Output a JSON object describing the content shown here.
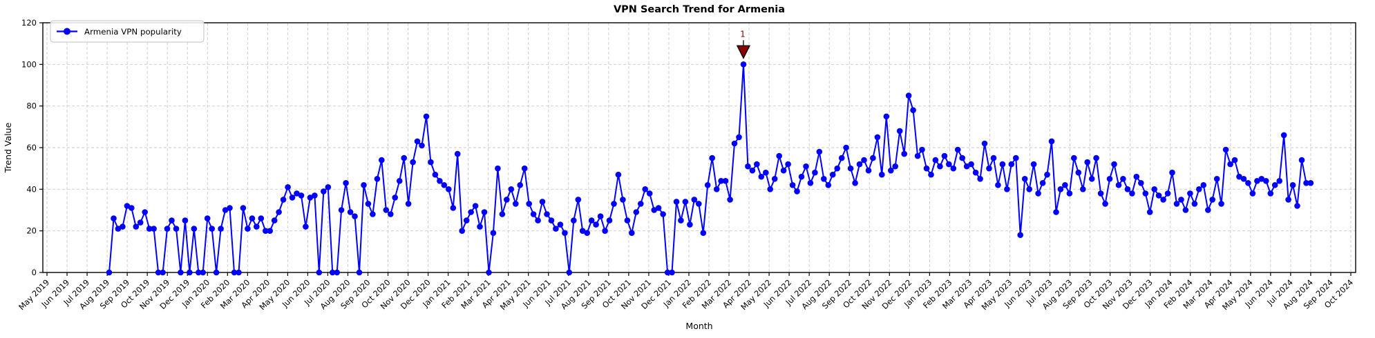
{
  "title": "VPN Search Trend for Armenia",
  "legend": {
    "label": "Armenia VPN popularity"
  },
  "annotation": {
    "label": "1",
    "point_index": 142,
    "color": "#8b0000"
  },
  "colors": {
    "line": "#0000ff",
    "marker": "#0000ff",
    "annotation": "#8b0000",
    "grid": "#c8c8c8",
    "axis": "#000000",
    "text": "#000000",
    "background": "#ffffff",
    "legend_border": "#cccccc"
  },
  "chart_data": {
    "type": "line",
    "title": "VPN Search Trend for Armenia",
    "xlabel": "Month",
    "ylabel": "Trend Value",
    "ylim": [
      0,
      120
    ],
    "y_ticks": [
      0,
      20,
      40,
      60,
      80,
      100,
      120
    ],
    "grid": true,
    "legend_position": "upper left",
    "x_tick_labels": [
      "May 2019",
      "Jun 2019",
      "Jul 2019",
      "Aug 2019",
      "Sep 2019",
      "Oct 2019",
      "Nov 2019",
      "Dec 2019",
      "Jan 2020",
      "Feb 2020",
      "Mar 2020",
      "Apr 2020",
      "May 2020",
      "Jun 2020",
      "Jul 2020",
      "Aug 2020",
      "Sep 2020",
      "Oct 2020",
      "Nov 2020",
      "Dec 2020",
      "Jan 2021",
      "Feb 2021",
      "Mar 2021",
      "Apr 2021",
      "May 2021",
      "Jun 2021",
      "Jul 2021",
      "Aug 2021",
      "Sep 2021",
      "Oct 2021",
      "Nov 2021",
      "Dec 2021",
      "Jan 2022",
      "Feb 2022",
      "Mar 2022",
      "Apr 2022",
      "May 2022",
      "Jun 2022",
      "Jul 2022",
      "Aug 2022",
      "Sep 2022",
      "Oct 2022",
      "Nov 2022",
      "Dec 2022",
      "Jan 2023",
      "Feb 2023",
      "Mar 2023",
      "Apr 2023",
      "May 2023",
      "Jun 2023",
      "Jul 2023",
      "Aug 2023",
      "Sep 2023",
      "Oct 2023",
      "Nov 2023",
      "Dec 2023",
      "Jan 2024",
      "Feb 2024",
      "Mar 2024",
      "Apr 2024",
      "May 2024",
      "Jun 2024",
      "Jul 2024",
      "Aug 2024",
      "Sep 2024",
      "Oct 2024"
    ],
    "data_start_month_index": 3.1,
    "data_end_month_index": 63.0,
    "series": [
      {
        "name": "Armenia VPN popularity",
        "values": [
          0,
          26,
          21,
          22,
          32,
          31,
          22,
          24,
          29,
          21,
          21,
          0,
          0,
          21,
          25,
          21,
          0,
          25,
          0,
          21,
          0,
          0,
          26,
          21,
          0,
          21,
          30,
          31,
          0,
          0,
          31,
          21,
          26,
          22,
          26,
          20,
          20,
          25,
          29,
          35,
          41,
          36,
          38,
          37,
          22,
          36,
          37,
          0,
          39,
          41,
          0,
          0,
          30,
          43,
          29,
          27,
          0,
          42,
          33,
          28,
          45,
          54,
          30,
          28,
          36,
          44,
          55,
          33,
          53,
          63,
          61,
          75,
          53,
          47,
          44,
          42,
          40,
          31,
          57,
          20,
          25,
          29,
          32,
          22,
          29,
          0,
          19,
          50,
          28,
          35,
          40,
          33,
          42,
          50,
          33,
          28,
          25,
          34,
          28,
          25,
          21,
          23,
          19,
          0,
          25,
          35,
          20,
          19,
          25,
          23,
          27,
          20,
          25,
          33,
          47,
          35,
          25,
          19,
          29,
          33,
          40,
          38,
          30,
          31,
          28,
          0,
          0,
          34,
          25,
          34,
          23,
          35,
          33,
          19,
          42,
          55,
          40,
          44,
          44,
          35,
          62,
          65,
          100,
          51,
          49,
          52,
          46,
          48,
          40,
          45,
          56,
          49,
          52,
          42,
          39,
          46,
          51,
          43,
          48,
          58,
          45,
          42,
          47,
          50,
          55,
          60,
          50,
          43,
          52,
          54,
          49,
          55,
          65,
          47,
          75,
          49,
          51,
          68,
          57,
          85,
          78,
          56,
          59,
          50,
          47,
          54,
          51,
          56,
          52,
          50,
          59,
          55,
          51,
          52,
          48,
          45,
          62,
          50,
          55,
          42,
          52,
          40,
          52,
          55,
          18,
          45,
          40,
          52,
          38,
          43,
          47,
          63,
          29,
          40,
          42,
          38,
          55,
          48,
          40,
          53,
          45,
          55,
          38,
          33,
          45,
          52,
          42,
          45,
          40,
          38,
          46,
          43,
          38,
          29,
          40,
          37,
          35,
          38,
          48,
          33,
          35,
          30,
          38,
          33,
          40,
          42,
          30,
          35,
          45,
          33,
          59,
          52,
          54,
          46,
          45,
          43,
          38,
          44,
          45,
          44,
          38,
          42,
          44,
          66,
          35,
          42,
          32,
          54,
          43,
          43
        ]
      }
    ]
  }
}
